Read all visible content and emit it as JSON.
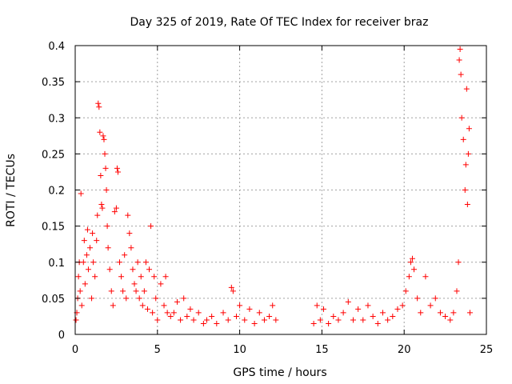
{
  "chart_data": {
    "type": "scatter",
    "title": "Day 325 of 2019, Rate Of TEC Index for receiver braz",
    "xlabel": "GPS time / hours",
    "ylabel": "ROTI / TECUs",
    "xlim": [
      0,
      25
    ],
    "ylim": [
      0,
      0.4
    ],
    "xticks": [
      0,
      5,
      10,
      15,
      20,
      25
    ],
    "xtick_labels": [
      "0",
      "5",
      "10",
      "15",
      "20",
      "25"
    ],
    "yticks": [
      0,
      0.05,
      0.1,
      0.15,
      0.2,
      0.25,
      0.3,
      0.35,
      0.4
    ],
    "ytick_labels": [
      "0",
      "0.05",
      "0.1",
      "0.15",
      "0.2",
      "0.25",
      "0.3",
      "0.35",
      "0.4"
    ],
    "grid": true,
    "marker": "+",
    "color": "#ff0000",
    "series": [
      {
        "points": [
          [
            0.05,
            0.02
          ],
          [
            0.1,
            0.03
          ],
          [
            0.15,
            0.05
          ],
          [
            0.2,
            0.08
          ],
          [
            0.25,
            0.1
          ],
          [
            0.3,
            0.06
          ],
          [
            0.35,
            0.195
          ],
          [
            0.4,
            0.04
          ],
          [
            0.5,
            0.1
          ],
          [
            0.55,
            0.13
          ],
          [
            0.6,
            0.07
          ],
          [
            0.7,
            0.11
          ],
          [
            0.75,
            0.145
          ],
          [
            0.8,
            0.09
          ],
          [
            0.9,
            0.12
          ],
          [
            1.0,
            0.05
          ],
          [
            1.05,
            0.14
          ],
          [
            1.1,
            0.1
          ],
          [
            1.2,
            0.08
          ],
          [
            1.3,
            0.13
          ],
          [
            1.35,
            0.165
          ],
          [
            1.4,
            0.32
          ],
          [
            1.45,
            0.315
          ],
          [
            1.5,
            0.28
          ],
          [
            1.55,
            0.22
          ],
          [
            1.6,
            0.18
          ],
          [
            1.65,
            0.175
          ],
          [
            1.7,
            0.275
          ],
          [
            1.75,
            0.27
          ],
          [
            1.8,
            0.25
          ],
          [
            1.85,
            0.23
          ],
          [
            1.9,
            0.2
          ],
          [
            1.95,
            0.15
          ],
          [
            2.0,
            0.12
          ],
          [
            2.1,
            0.09
          ],
          [
            2.2,
            0.06
          ],
          [
            2.3,
            0.04
          ],
          [
            2.4,
            0.17
          ],
          [
            2.5,
            0.175
          ],
          [
            2.55,
            0.23
          ],
          [
            2.6,
            0.225
          ],
          [
            2.7,
            0.1
          ],
          [
            2.8,
            0.08
          ],
          [
            2.9,
            0.06
          ],
          [
            3.0,
            0.11
          ],
          [
            3.1,
            0.05
          ],
          [
            3.2,
            0.165
          ],
          [
            3.3,
            0.14
          ],
          [
            3.4,
            0.12
          ],
          [
            3.5,
            0.09
          ],
          [
            3.6,
            0.07
          ],
          [
            3.7,
            0.06
          ],
          [
            3.8,
            0.1
          ],
          [
            3.9,
            0.05
          ],
          [
            4.0,
            0.08
          ],
          [
            4.1,
            0.04
          ],
          [
            4.2,
            0.06
          ],
          [
            4.3,
            0.1
          ],
          [
            4.4,
            0.035
          ],
          [
            4.5,
            0.09
          ],
          [
            4.6,
            0.15
          ],
          [
            4.7,
            0.03
          ],
          [
            4.8,
            0.08
          ],
          [
            4.9,
            0.05
          ],
          [
            5.0,
            0.02
          ],
          [
            5.2,
            0.07
          ],
          [
            5.4,
            0.04
          ],
          [
            5.5,
            0.08
          ],
          [
            5.6,
            0.03
          ],
          [
            5.8,
            0.025
          ],
          [
            6.0,
            0.03
          ],
          [
            6.2,
            0.045
          ],
          [
            6.4,
            0.02
          ],
          [
            6.6,
            0.05
          ],
          [
            6.8,
            0.025
          ],
          [
            7.0,
            0.035
          ],
          [
            7.2,
            0.02
          ],
          [
            7.5,
            0.03
          ],
          [
            7.8,
            0.015
          ],
          [
            8.0,
            0.02
          ],
          [
            8.3,
            0.025
          ],
          [
            8.6,
            0.015
          ],
          [
            9.0,
            0.03
          ],
          [
            9.3,
            0.02
          ],
          [
            9.5,
            0.065
          ],
          [
            9.6,
            0.06
          ],
          [
            9.8,
            0.025
          ],
          [
            10.0,
            0.04
          ],
          [
            10.3,
            0.02
          ],
          [
            10.6,
            0.035
          ],
          [
            10.9,
            0.015
          ],
          [
            11.2,
            0.03
          ],
          [
            11.5,
            0.02
          ],
          [
            11.8,
            0.025
          ],
          [
            12.0,
            0.04
          ],
          [
            12.2,
            0.02
          ],
          [
            14.5,
            0.015
          ],
          [
            14.7,
            0.04
          ],
          [
            14.9,
            0.02
          ],
          [
            15.1,
            0.035
          ],
          [
            15.4,
            0.015
          ],
          [
            15.7,
            0.025
          ],
          [
            16.0,
            0.02
          ],
          [
            16.3,
            0.03
          ],
          [
            16.6,
            0.045
          ],
          [
            16.9,
            0.02
          ],
          [
            17.2,
            0.035
          ],
          [
            17.5,
            0.02
          ],
          [
            17.8,
            0.04
          ],
          [
            18.1,
            0.025
          ],
          [
            18.4,
            0.015
          ],
          [
            18.7,
            0.03
          ],
          [
            19.0,
            0.02
          ],
          [
            19.3,
            0.025
          ],
          [
            19.6,
            0.035
          ],
          [
            19.9,
            0.04
          ],
          [
            20.1,
            0.06
          ],
          [
            20.3,
            0.08
          ],
          [
            20.4,
            0.1
          ],
          [
            20.5,
            0.105
          ],
          [
            20.6,
            0.09
          ],
          [
            20.8,
            0.05
          ],
          [
            21.0,
            0.03
          ],
          [
            21.3,
            0.08
          ],
          [
            21.6,
            0.04
          ],
          [
            21.9,
            0.05
          ],
          [
            22.2,
            0.03
          ],
          [
            22.5,
            0.025
          ],
          [
            22.8,
            0.02
          ],
          [
            23.0,
            0.03
          ],
          [
            23.2,
            0.06
          ],
          [
            23.3,
            0.1
          ],
          [
            23.35,
            0.38
          ],
          [
            23.4,
            0.395
          ],
          [
            23.45,
            0.36
          ],
          [
            23.5,
            0.3
          ],
          [
            23.6,
            0.27
          ],
          [
            23.7,
            0.2
          ],
          [
            23.75,
            0.235
          ],
          [
            23.8,
            0.34
          ],
          [
            23.85,
            0.18
          ],
          [
            23.9,
            0.25
          ],
          [
            23.95,
            0.285
          ],
          [
            24.0,
            0.03
          ]
        ]
      }
    ]
  }
}
